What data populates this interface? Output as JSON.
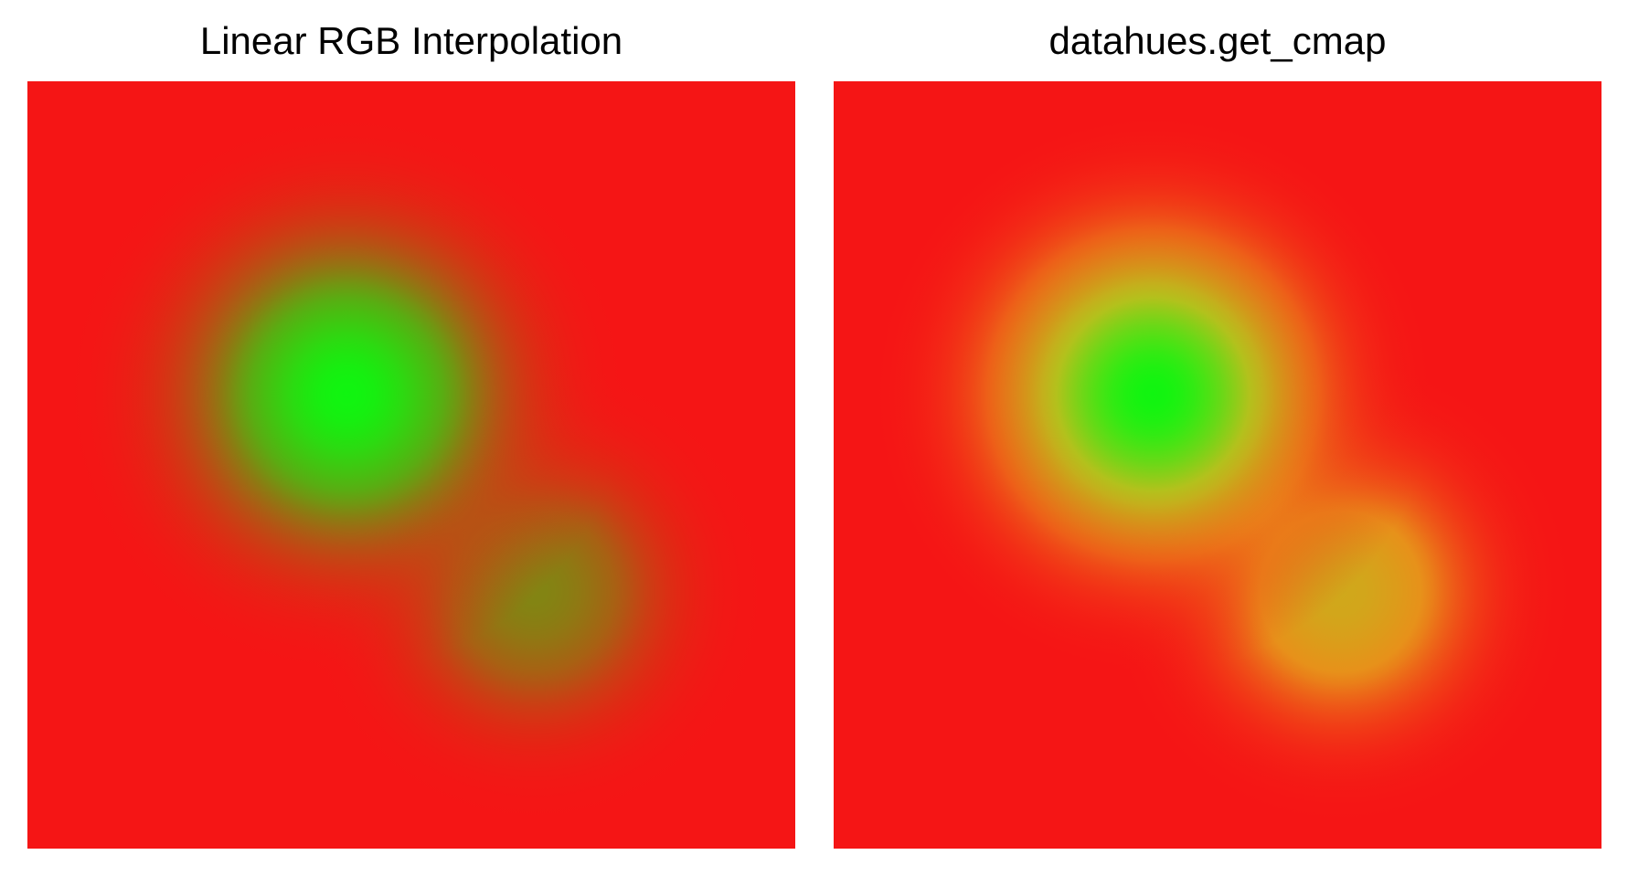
{
  "chart_data": [
    {
      "type": "heatmap",
      "title": "Linear RGB Interpolation",
      "colors": [
        "#f51515",
        "#10f510"
      ]
    },
    {
      "type": "heatmap",
      "title": "datahues.get_cmap",
      "colors": [
        "#f51515",
        "#e8901a",
        "#b8c01c",
        "#10f510"
      ]
    }
  ]
}
